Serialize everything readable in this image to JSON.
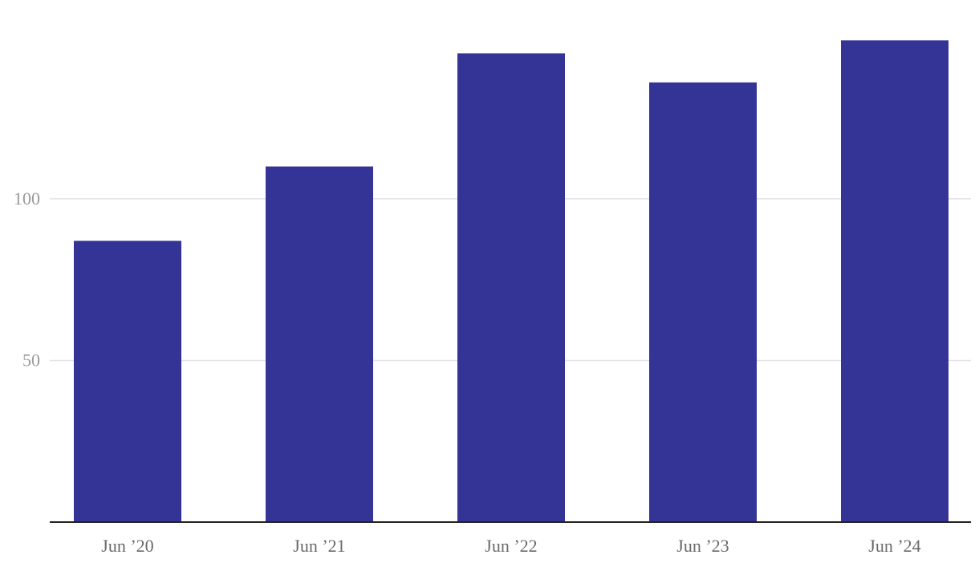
{
  "chart_data": {
    "type": "bar",
    "categories": [
      "Jun ’20",
      "Jun ’21",
      "Jun ’22",
      "Jun ’23",
      "Jun ’24"
    ],
    "values": [
      87,
      110,
      145,
      136,
      149
    ],
    "color": "#343396",
    "ylim": [
      0,
      160
    ],
    "yticks": [
      50,
      100
    ],
    "grid": true
  }
}
